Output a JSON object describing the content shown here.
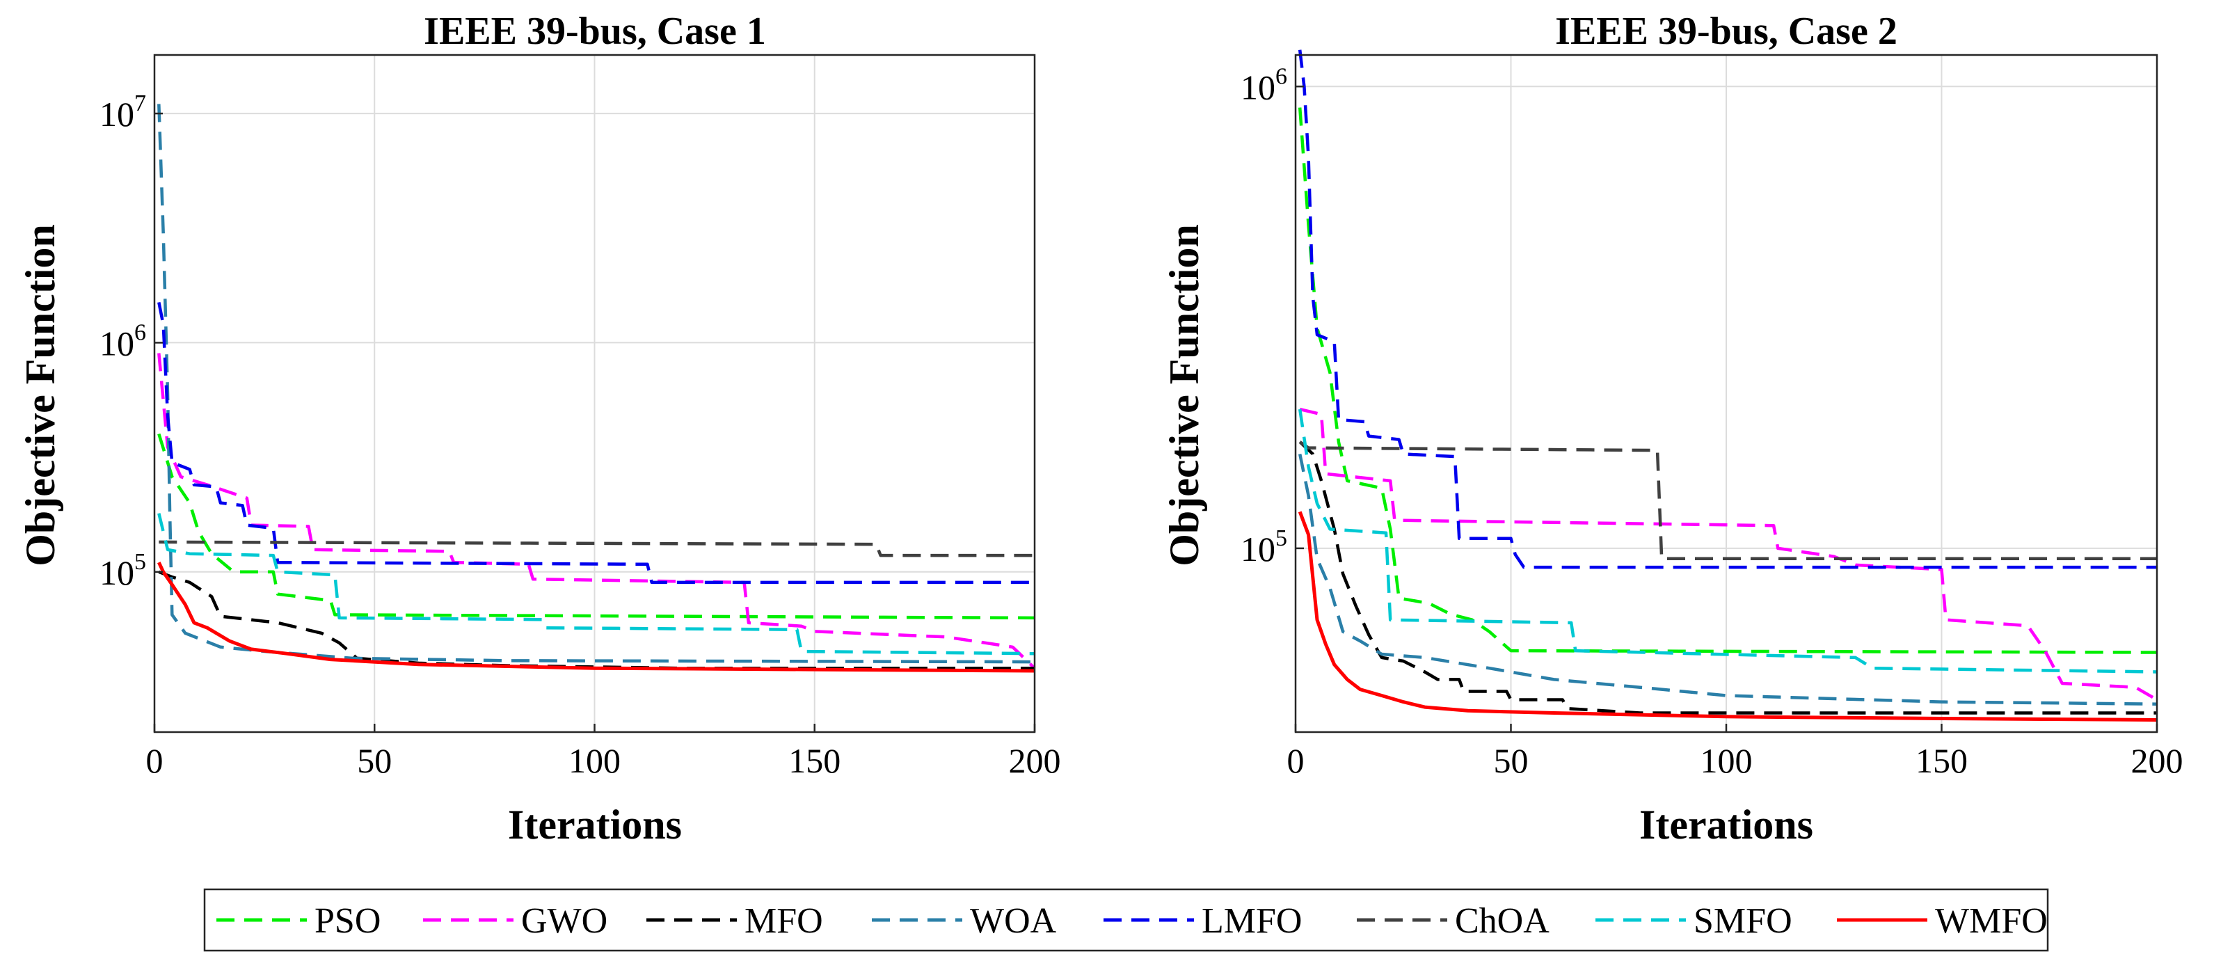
{
  "legend": {
    "position": "bottom-center",
    "entries": [
      {
        "name": "PSO",
        "color": "#00ee00",
        "dash": "dashed"
      },
      {
        "name": "GWO",
        "color": "#ff00ff",
        "dash": "dashed"
      },
      {
        "name": "MFO",
        "color": "#000000",
        "dash": "dashed"
      },
      {
        "name": "WOA",
        "color": "#2a7fa8",
        "dash": "dashed"
      },
      {
        "name": "LMFO",
        "color": "#0000ee",
        "dash": "dashed"
      },
      {
        "name": "ChOA",
        "color": "#404040",
        "dash": "dashed"
      },
      {
        "name": "SMFO",
        "color": "#00c8d2",
        "dash": "dashed"
      },
      {
        "name": "WMFO",
        "color": "#ff0000",
        "dash": "solid"
      }
    ]
  },
  "chart_data": [
    {
      "type": "line",
      "title": "IEEE 39-bus, Case 1",
      "xlabel": "Iterations",
      "ylabel": "Objective Function",
      "yscale": "log",
      "xlim": [
        0,
        200
      ],
      "ylim": [
        20000,
        18000000
      ],
      "xticks": [
        0,
        50,
        100,
        150,
        200
      ],
      "xtick_labels": [
        "0",
        "50",
        "100",
        "150",
        "200"
      ],
      "yticks": [
        100000,
        1000000,
        10000000
      ],
      "ytick_labels": [
        {
          "base": "10",
          "exp": "5"
        },
        {
          "base": "10",
          "exp": "6"
        },
        {
          "base": "10",
          "exp": "7"
        }
      ],
      "grid": true,
      "series": [
        {
          "name": "PSO",
          "points": [
            [
              1,
              400000
            ],
            [
              4,
              260000
            ],
            [
              8,
              200000
            ],
            [
              10,
              150000
            ],
            [
              13,
              120000
            ],
            [
              18,
              100000
            ],
            [
              27,
              100000
            ],
            [
              28,
              80000
            ],
            [
              40,
              75000
            ],
            [
              41,
              65000
            ],
            [
              200,
              63000
            ]
          ]
        },
        {
          "name": "GWO",
          "points": [
            [
              1,
              900000
            ],
            [
              3,
              350000
            ],
            [
              6,
              260000
            ],
            [
              12,
              240000
            ],
            [
              21,
              210000
            ],
            [
              22,
              160000
            ],
            [
              35,
              158000
            ],
            [
              36,
              125000
            ],
            [
              67,
              123000
            ],
            [
              68,
              110000
            ],
            [
              85,
              108000
            ],
            [
              86,
              93000
            ],
            [
              134,
              90000
            ],
            [
              135,
              60000
            ],
            [
              147,
              58000
            ],
            [
              150,
              55000
            ],
            [
              180,
              52000
            ],
            [
              195,
              47000
            ],
            [
              200,
              38000
            ]
          ]
        },
        {
          "name": "MFO",
          "points": [
            [
              1,
              100000
            ],
            [
              4,
              95000
            ],
            [
              8,
              90000
            ],
            [
              13,
              78000
            ],
            [
              15,
              64000
            ],
            [
              28,
              60000
            ],
            [
              38,
              54000
            ],
            [
              42,
              49000
            ],
            [
              46,
              42000
            ],
            [
              60,
              40000
            ],
            [
              80,
              39000
            ],
            [
              120,
              38000
            ],
            [
              200,
              38000
            ]
          ]
        },
        {
          "name": "WOA",
          "points": [
            [
              1,
              11000000
            ],
            [
              2,
              3000000
            ],
            [
              3,
              600000
            ],
            [
              3.5,
              180000
            ],
            [
              4,
              65000
            ],
            [
              7,
              54000
            ],
            [
              15,
              47000
            ],
            [
              25,
              45000
            ],
            [
              45,
              42000
            ],
            [
              80,
              41000
            ],
            [
              200,
              40500
            ]
          ]
        },
        {
          "name": "LMFO",
          "points": [
            [
              1,
              1500000
            ],
            [
              2,
              1200000
            ],
            [
              3,
              480000
            ],
            [
              4,
              300000
            ],
            [
              8,
              280000
            ],
            [
              9,
              240000
            ],
            [
              14,
              235000
            ],
            [
              15,
              200000
            ],
            [
              20,
              195000
            ],
            [
              21,
              160000
            ],
            [
              27,
              155000
            ],
            [
              28,
              110000
            ],
            [
              112,
              108000
            ],
            [
              113,
              90000
            ],
            [
              200,
              90000
            ]
          ]
        },
        {
          "name": "ChOA",
          "points": [
            [
              1,
              135000
            ],
            [
              164,
              132000
            ],
            [
              165,
              118000
            ],
            [
              200,
              118000
            ]
          ]
        },
        {
          "name": "SMFO",
          "points": [
            [
              1,
              180000
            ],
            [
              3,
              125000
            ],
            [
              8,
              120000
            ],
            [
              27,
              118000
            ],
            [
              28,
              100000
            ],
            [
              41,
              97000
            ],
            [
              42,
              63000
            ],
            [
              88,
              62000
            ],
            [
              89,
              57000
            ],
            [
              146,
              56000
            ],
            [
              147,
              45000
            ],
            [
              200,
              44000
            ]
          ]
        },
        {
          "name": "WMFO",
          "points": [
            [
              1,
              110000
            ],
            [
              2,
              100000
            ],
            [
              4,
              88000
            ],
            [
              7,
              72000
            ],
            [
              9,
              60000
            ],
            [
              12,
              57000
            ],
            [
              17,
              50000
            ],
            [
              22,
              46000
            ],
            [
              30,
              44000
            ],
            [
              40,
              41500
            ],
            [
              60,
              39500
            ],
            [
              100,
              38000
            ],
            [
              150,
              37500
            ],
            [
              200,
              37000
            ]
          ]
        }
      ]
    },
    {
      "type": "line",
      "title": "IEEE 39-bus, Case 2",
      "xlabel": "Iterations",
      "ylabel": "Objective Function",
      "yscale": "log",
      "xlim": [
        0,
        200
      ],
      "ylim": [
        40000,
        1170000
      ],
      "xticks": [
        0,
        50,
        100,
        150,
        200
      ],
      "xtick_labels": [
        "0",
        "50",
        "100",
        "150",
        "200"
      ],
      "yticks": [
        100000,
        1000000
      ],
      "ytick_labels": [
        {
          "base": "10",
          "exp": "5"
        },
        {
          "base": "10",
          "exp": "6"
        }
      ],
      "grid": true,
      "series": [
        {
          "name": "PSO",
          "points": [
            [
              1,
              900000
            ],
            [
              3,
              500000
            ],
            [
              5,
              300000
            ],
            [
              8,
              240000
            ],
            [
              10,
              170000
            ],
            [
              12,
              140000
            ],
            [
              20,
              135000
            ],
            [
              22,
              110000
            ],
            [
              24,
              78000
            ],
            [
              31,
              76000
            ],
            [
              36,
              72000
            ],
            [
              41,
              70000
            ],
            [
              45,
              66000
            ],
            [
              50,
              60000
            ],
            [
              200,
              59500
            ]
          ]
        },
        {
          "name": "GWO",
          "points": [
            [
              1,
              200000
            ],
            [
              6,
              195000
            ],
            [
              7,
              145000
            ],
            [
              22,
              140000
            ],
            [
              23,
              115000
            ],
            [
              111,
              112000
            ],
            [
              112,
              100000
            ],
            [
              125,
              96000
            ],
            [
              130,
              92000
            ],
            [
              150,
              90000
            ],
            [
              151,
              70000
            ],
            [
              170,
              68000
            ],
            [
              174,
              60000
            ],
            [
              178,
              51000
            ],
            [
              195,
              50000
            ],
            [
              200,
              47000
            ]
          ]
        },
        {
          "name": "MFO",
          "points": [
            [
              1,
              170000
            ],
            [
              4,
              160000
            ],
            [
              6,
              140000
            ],
            [
              9,
              110000
            ],
            [
              11,
              88000
            ],
            [
              14,
              75000
            ],
            [
              17,
              65000
            ],
            [
              20,
              58000
            ],
            [
              25,
              57000
            ],
            [
              30,
              54000
            ],
            [
              33,
              52000
            ],
            [
              38,
              52000
            ],
            [
              39,
              49000
            ],
            [
              49,
              49000
            ],
            [
              50,
              47000
            ],
            [
              62,
              47000
            ],
            [
              63,
              45000
            ],
            [
              80,
              44000
            ],
            [
              200,
              44000
            ]
          ]
        },
        {
          "name": "WOA",
          "points": [
            [
              1,
              160000
            ],
            [
              3,
              130000
            ],
            [
              5,
              95000
            ],
            [
              8,
              82000
            ],
            [
              11,
              66000
            ],
            [
              15,
              63000
            ],
            [
              20,
              59000
            ],
            [
              30,
              58000
            ],
            [
              45,
              55000
            ],
            [
              60,
              52000
            ],
            [
              80,
              50000
            ],
            [
              100,
              48000
            ],
            [
              150,
              46500
            ],
            [
              200,
              46000
            ]
          ]
        },
        {
          "name": "LMFO",
          "points": [
            [
              1,
              1200000
            ],
            [
              2,
              1000000
            ],
            [
              3,
              700000
            ],
            [
              4,
              350000
            ],
            [
              5,
              290000
            ],
            [
              9,
              280000
            ],
            [
              10,
              190000
            ],
            [
              16,
              188000
            ],
            [
              17,
              175000
            ],
            [
              24,
              172000
            ],
            [
              25,
              160000
            ],
            [
              37,
              158000
            ],
            [
              38,
              105000
            ],
            [
              50,
              105000
            ],
            [
              51,
              97000
            ],
            [
              53,
              91000
            ],
            [
              200,
              91000
            ]
          ]
        },
        {
          "name": "ChOA",
          "points": [
            [
              1,
              170000
            ],
            [
              3,
              165000
            ],
            [
              84,
              163000
            ],
            [
              85,
              95000
            ],
            [
              200,
              95000
            ]
          ]
        },
        {
          "name": "SMFO",
          "points": [
            [
              1,
              200000
            ],
            [
              3,
              150000
            ],
            [
              5,
              125000
            ],
            [
              8,
              110000
            ],
            [
              21,
              108000
            ],
            [
              22,
              70000
            ],
            [
              64,
              69000
            ],
            [
              65,
              60000
            ],
            [
              130,
              58000
            ],
            [
              134,
              55000
            ],
            [
              200,
              54000
            ]
          ]
        },
        {
          "name": "WMFO",
          "points": [
            [
              1,
              120000
            ],
            [
              3,
              107000
            ],
            [
              5,
              70000
            ],
            [
              7,
              62000
            ],
            [
              9,
              56000
            ],
            [
              12,
              52000
            ],
            [
              15,
              49500
            ],
            [
              20,
              48000
            ],
            [
              25,
              46500
            ],
            [
              30,
              45300
            ],
            [
              40,
              44500
            ],
            [
              60,
              44000
            ],
            [
              100,
              43200
            ],
            [
              150,
              42800
            ],
            [
              200,
              42500
            ]
          ]
        }
      ]
    }
  ]
}
